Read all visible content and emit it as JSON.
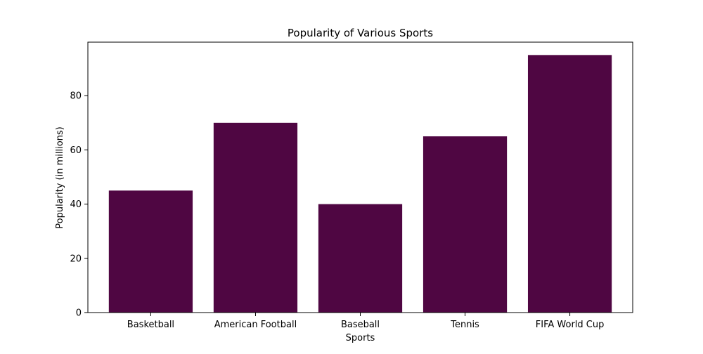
{
  "chart_data": {
    "type": "bar",
    "title": "Popularity of Various Sports",
    "xlabel": "Sports",
    "ylabel": "Popularity (in millions)",
    "categories": [
      "Basketball",
      "American Football",
      "Baseball",
      "Tennis",
      "FIFA World Cup"
    ],
    "values": [
      45,
      70,
      40,
      65,
      95
    ],
    "ylim": [
      0,
      99.75
    ],
    "yticks": [
      0,
      20,
      40,
      60,
      80
    ],
    "grid": false,
    "bar_color": "#4f0642"
  }
}
